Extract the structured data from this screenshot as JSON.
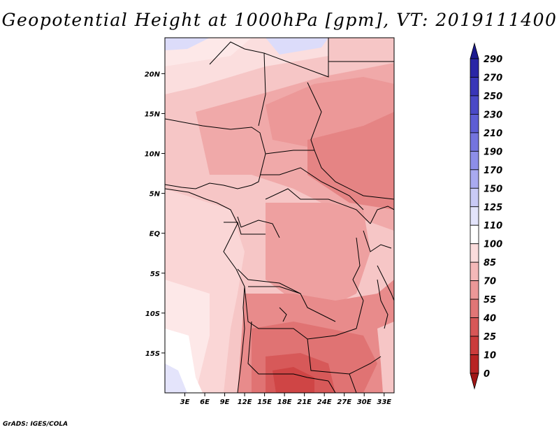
{
  "title": "Geopotential Height at 1000hPa [gpm], VT: 2019111400",
  "credit": "GrADS: IGES/COLA",
  "map": {
    "variable": "Geopotential Height",
    "level": "1000hPa",
    "units": "gpm",
    "valid_time": "2019111400",
    "lon_range": [
      0,
      34.5
    ],
    "lat_range": [
      -20,
      24.5
    ],
    "x_ticks": [
      "3E",
      "6E",
      "9E",
      "12E",
      "15E",
      "18E",
      "21E",
      "24E",
      "27E",
      "30E",
      "33E"
    ],
    "y_ticks": [
      "20N",
      "15N",
      "10N",
      "5N",
      "EQ",
      "5S",
      "10S",
      "15S"
    ]
  },
  "colorbar": {
    "labels": [
      "290",
      "270",
      "250",
      "230",
      "210",
      "190",
      "170",
      "150",
      "125",
      "110",
      "100",
      "85",
      "70",
      "55",
      "40",
      "25",
      "10",
      "0"
    ],
    "colors": [
      "#1c1a8f",
      "#2a26a6",
      "#3936b8",
      "#4a49c7",
      "#5d5dd4",
      "#7474de",
      "#8d8ee8",
      "#a9aaf0",
      "#c9caf6",
      "#e3e4fb",
      "#ffffff",
      "#fbdcdc",
      "#f4b8b8",
      "#ec9898",
      "#e17676",
      "#d75757",
      "#cb3c3c",
      "#b82424",
      "#a01616"
    ]
  }
}
